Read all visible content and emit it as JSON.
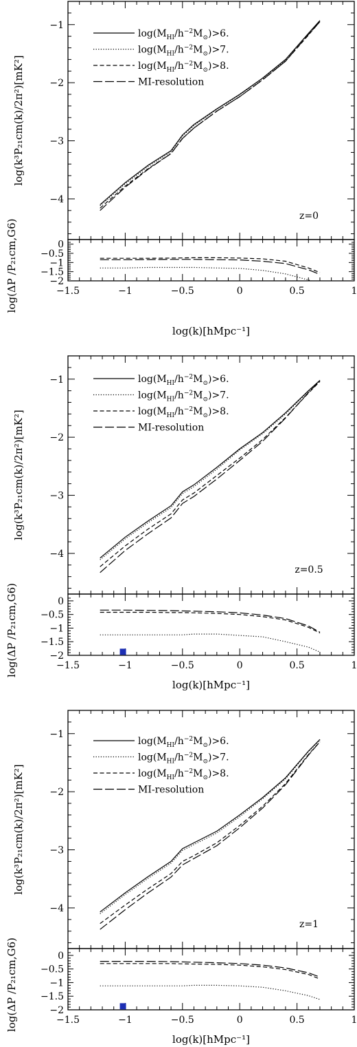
{
  "chart_data": [
    {
      "type": "line",
      "panel_label": "z=0",
      "xlabel": "log(k)[hMpc⁻¹]",
      "ylabel_top": "log(k³P₂₁cm(k)/2π²)[mK²]",
      "ylabel_bottom": "log(ΔP /P₂₁cm,G6)",
      "xlim": [
        -1.5,
        1
      ],
      "ylim_top": [
        -4.7,
        -0.6
      ],
      "ylim_bottom": [
        -2,
        0.25
      ],
      "xticks": [
        -1.5,
        -1,
        -0.5,
        0,
        0.5,
        1
      ],
      "xticklabels": [
        "−1.5",
        "−1",
        "−0.5",
        "0",
        "0.5",
        "1"
      ],
      "yticks_top": [
        -1,
        -2,
        -3,
        -4
      ],
      "yticklabels_top": [
        "−1",
        "−2",
        "−3",
        "−4"
      ],
      "yticks_bottom": [
        0,
        -0.5,
        -1,
        -1.5,
        -2
      ],
      "yticklabels_bottom": [
        "0",
        "−0.5",
        "−1",
        "−1.5",
        "−2"
      ],
      "x": [
        -1.22,
        -1.0,
        -0.8,
        -0.6,
        -0.5,
        -0.4,
        -0.2,
        0.0,
        0.2,
        0.4,
        0.6,
        0.7
      ],
      "series": [
        {
          "name": "log(M_HI/h^-2 M_sun)>6.",
          "style": "solid",
          "values": [
            -4.1,
            -3.72,
            -3.42,
            -3.17,
            -2.9,
            -2.72,
            -2.45,
            -2.2,
            -1.92,
            -1.6,
            -1.15,
            -0.93
          ],
          "ratio": null
        },
        {
          "name": "log(M_HI/h^-2 M_sun)>7.",
          "style": "dotted",
          "values": [
            -4.12,
            -3.74,
            -3.44,
            -3.19,
            -2.92,
            -2.74,
            -2.46,
            -2.21,
            -1.93,
            -1.61,
            -1.16,
            -0.94
          ],
          "ratio": [
            -1.3,
            -1.3,
            -1.27,
            -1.27,
            -1.27,
            -1.27,
            -1.3,
            -1.32,
            -1.43,
            -1.62,
            -1.95,
            -2.15
          ]
        },
        {
          "name": "log(M_HI/h^-2 M_sun)>8.",
          "style": "dashed",
          "values": [
            -4.16,
            -3.78,
            -3.48,
            -3.22,
            -2.96,
            -2.78,
            -2.49,
            -2.24,
            -1.95,
            -1.63,
            -1.18,
            -0.95
          ],
          "ratio": [
            -0.77,
            -0.77,
            -0.77,
            -0.76,
            -0.75,
            -0.74,
            -0.74,
            -0.76,
            -0.8,
            -0.93,
            -1.3,
            -1.55
          ]
        },
        {
          "name": "MI-resolution",
          "style": "longdash",
          "values": [
            -4.2,
            -3.8,
            -3.49,
            -3.22,
            -2.96,
            -2.78,
            -2.49,
            -2.24,
            -1.95,
            -1.63,
            -1.17,
            -0.95
          ],
          "ratio": [
            -0.85,
            -0.85,
            -0.84,
            -0.83,
            -0.83,
            -0.83,
            -0.85,
            -0.86,
            -0.93,
            -1.06,
            -1.4,
            -1.65
          ]
        }
      ],
      "marker": null
    },
    {
      "type": "line",
      "panel_label": "z=0.5",
      "xlabel": "log(k)[hMpc⁻¹]",
      "ylabel_top": "log(k³P₂₁cm(k)/2π²)[mK²]",
      "ylabel_bottom": "log(ΔP /P₂₁cm,G6)",
      "xlim": [
        -1.5,
        1
      ],
      "ylim_top": [
        -4.7,
        -0.6
      ],
      "ylim_bottom": [
        -2,
        0.25
      ],
      "xticks": [
        -1.5,
        -1,
        -0.5,
        0,
        0.5,
        1
      ],
      "xticklabels": [
        "−1.5",
        "−1",
        "−0.5",
        "0",
        "0.5",
        "1"
      ],
      "yticks_top": [
        -1,
        -2,
        -3,
        -4
      ],
      "yticklabels_top": [
        "−1",
        "−2",
        "−3",
        "−4"
      ],
      "yticks_bottom": [
        0,
        -0.5,
        -1,
        -1.5,
        -2
      ],
      "yticklabels_bottom": [
        "0",
        "−0.5",
        "−1",
        "−1.5",
        "−2"
      ],
      "x": [
        -1.22,
        -1.0,
        -0.8,
        -0.6,
        -0.5,
        -0.4,
        -0.2,
        0.0,
        0.2,
        0.4,
        0.6,
        0.7
      ],
      "series": [
        {
          "name": "log(M_HI/h^-2 M_sun)>6.",
          "style": "solid",
          "values": [
            -4.08,
            -3.72,
            -3.44,
            -3.18,
            -2.94,
            -2.82,
            -2.52,
            -2.2,
            -1.92,
            -1.58,
            -1.2,
            -1.02
          ],
          "ratio": null
        },
        {
          "name": "log(M_HI/h^-2 M_sun)>7.",
          "style": "dotted",
          "values": [
            -4.11,
            -3.75,
            -3.47,
            -3.21,
            -2.97,
            -2.85,
            -2.55,
            -2.22,
            -1.94,
            -1.6,
            -1.21,
            -1.03
          ],
          "ratio": [
            -1.25,
            -1.25,
            -1.25,
            -1.25,
            -1.25,
            -1.22,
            -1.22,
            -1.27,
            -1.32,
            -1.5,
            -1.7,
            -1.88
          ]
        },
        {
          "name": "log(M_HI/h^-2 M_sun)>8.",
          "style": "dashed",
          "values": [
            -4.23,
            -3.87,
            -3.58,
            -3.32,
            -3.08,
            -2.96,
            -2.66,
            -2.36,
            -2.04,
            -1.66,
            -1.24,
            -1.04
          ],
          "ratio": [
            -0.42,
            -0.42,
            -0.42,
            -0.43,
            -0.43,
            -0.44,
            -0.46,
            -0.5,
            -0.58,
            -0.7,
            -0.97,
            -1.18
          ]
        },
        {
          "name": "MI-resolution",
          "style": "longdash",
          "values": [
            -4.33,
            -3.95,
            -3.66,
            -3.39,
            -3.14,
            -3.02,
            -2.72,
            -2.4,
            -2.07,
            -1.67,
            -1.23,
            -1.03
          ],
          "ratio": [
            -0.34,
            -0.34,
            -0.35,
            -0.36,
            -0.37,
            -0.38,
            -0.4,
            -0.44,
            -0.52,
            -0.65,
            -0.92,
            -1.15
          ]
        }
      ],
      "marker": {
        "x": -1.02,
        "y": -1.87,
        "color": "#1d2fb4"
      }
    },
    {
      "type": "line",
      "panel_label": "z=1",
      "xlabel": "log(k)[hMpc⁻¹]",
      "ylabel_top": "log(k³P₂₁cm(k)/2π²)[mK²]",
      "ylabel_bottom": "log(ΔP /P₂₁cm,G6)",
      "xlim": [
        -1.5,
        1
      ],
      "ylim_top": [
        -4.7,
        -0.6
      ],
      "ylim_bottom": [
        -2,
        0.25
      ],
      "xticks": [
        -1.5,
        -1,
        -0.5,
        0,
        0.5,
        1
      ],
      "xticklabels": [
        "−1.5",
        "−1",
        "−0.5",
        "0",
        "0.5",
        "1"
      ],
      "yticks_top": [
        -1,
        -2,
        -3,
        -4
      ],
      "yticklabels_top": [
        "−1",
        "−2",
        "−3",
        "−4"
      ],
      "yticks_bottom": [
        0,
        -0.5,
        -1,
        -1.5,
        -2
      ],
      "yticklabels_bottom": [
        "0",
        "−0.5",
        "−1",
        "−1.5",
        "−2"
      ],
      "x": [
        -1.22,
        -1.0,
        -0.8,
        -0.6,
        -0.5,
        -0.4,
        -0.2,
        0.0,
        0.2,
        0.4,
        0.6,
        0.7
      ],
      "series": [
        {
          "name": "log(M_HI/h^-2 M_sun)>6.",
          "style": "solid",
          "values": [
            -4.07,
            -3.74,
            -3.46,
            -3.2,
            -2.98,
            -2.88,
            -2.68,
            -2.4,
            -2.1,
            -1.76,
            -1.3,
            -1.1
          ],
          "ratio": null
        },
        {
          "name": "log(M_HI/h^-2 M_sun)>7.",
          "style": "dotted",
          "values": [
            -4.1,
            -3.77,
            -3.49,
            -3.23,
            -3.01,
            -2.91,
            -2.71,
            -2.43,
            -2.12,
            -1.78,
            -1.31,
            -1.11
          ],
          "ratio": [
            -1.12,
            -1.12,
            -1.12,
            -1.12,
            -1.12,
            -1.1,
            -1.1,
            -1.12,
            -1.17,
            -1.3,
            -1.48,
            -1.62
          ]
        },
        {
          "name": "log(M_HI/h^-2 M_sun)>8.",
          "style": "dashed",
          "values": [
            -4.27,
            -3.95,
            -3.67,
            -3.41,
            -3.2,
            -3.1,
            -2.88,
            -2.58,
            -2.25,
            -1.86,
            -1.36,
            -1.14
          ],
          "ratio": [
            -0.3,
            -0.3,
            -0.3,
            -0.3,
            -0.31,
            -0.32,
            -0.33,
            -0.36,
            -0.42,
            -0.52,
            -0.7,
            -0.87
          ]
        },
        {
          "name": "MI-resolution",
          "style": "longdash",
          "values": [
            -4.37,
            -4.03,
            -3.74,
            -3.47,
            -3.26,
            -3.15,
            -2.93,
            -2.62,
            -2.28,
            -1.88,
            -1.37,
            -1.14
          ],
          "ratio": [
            -0.22,
            -0.22,
            -0.22,
            -0.23,
            -0.24,
            -0.25,
            -0.27,
            -0.3,
            -0.36,
            -0.46,
            -0.64,
            -0.8
          ]
        }
      ],
      "marker": {
        "x": -1.02,
        "y": -1.87,
        "color": "#1d2fb4"
      }
    }
  ]
}
